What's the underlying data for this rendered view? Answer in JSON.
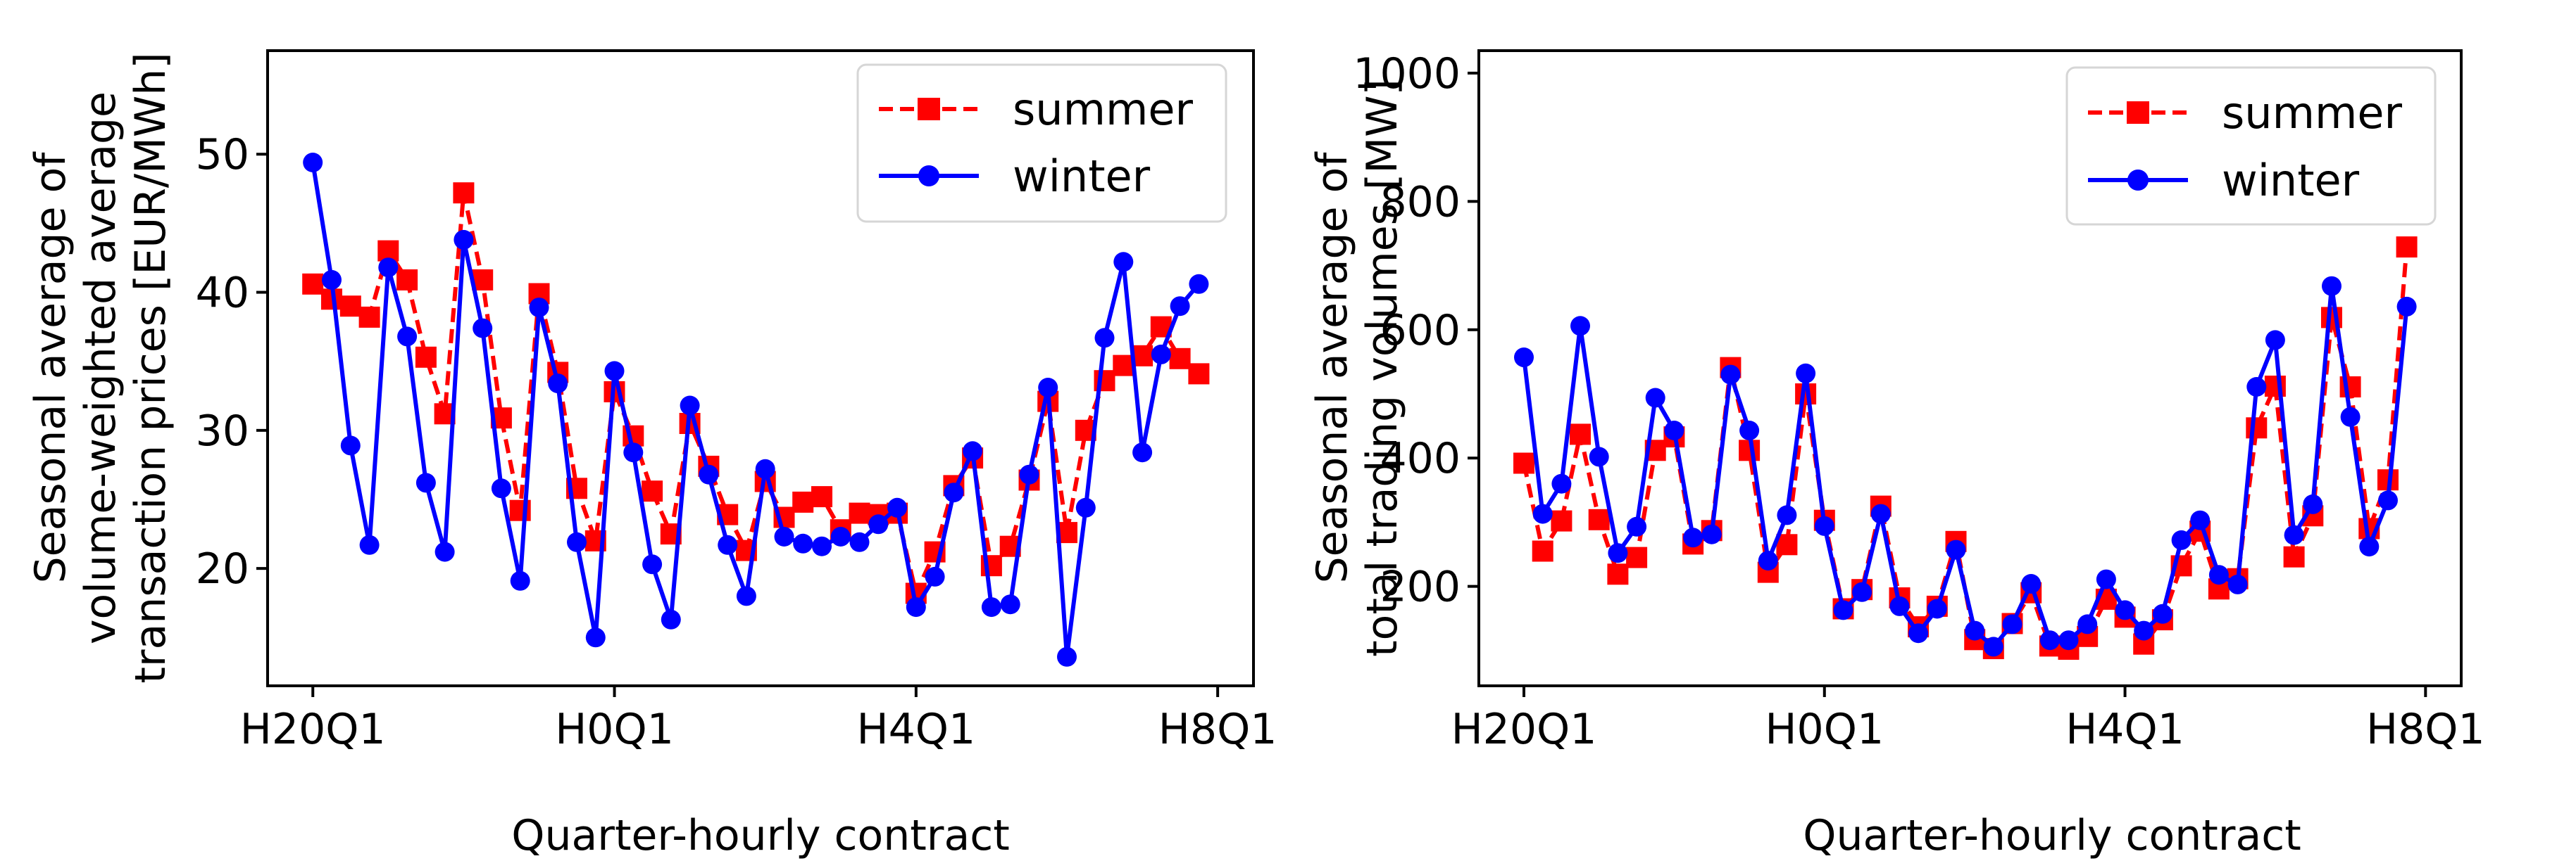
{
  "chart_data": [
    {
      "type": "line",
      "title": "",
      "xlabel": "Quarter-hourly contract",
      "ylabel_lines": [
        "Seasonal average of",
        "volume-weighted average",
        "transaction prices [EUR/MWh]"
      ],
      "xticks": [
        {
          "index": 0,
          "label": "H20Q1"
        },
        {
          "index": 16,
          "label": "H0Q1"
        },
        {
          "index": 32,
          "label": "H4Q1"
        },
        {
          "index": 48,
          "label": "H8Q1"
        }
      ],
      "yticks": [
        20,
        30,
        40,
        50
      ],
      "ylim": [
        11.5,
        57.5
      ],
      "xlim": [
        -2.4,
        49.9
      ],
      "legend_position": "top-right",
      "series": [
        {
          "name": "summer",
          "color": "#ff0000",
          "linestyle": "dashed",
          "marker": "square",
          "values": [
            40.6,
            39.5,
            39.0,
            38.2,
            43.0,
            40.9,
            35.3,
            31.2,
            47.2,
            40.9,
            30.9,
            24.2,
            39.9,
            34.2,
            25.8,
            22.0,
            32.8,
            29.6,
            25.6,
            22.5,
            30.5,
            27.4,
            23.9,
            21.3,
            26.3,
            23.7,
            24.8,
            25.2,
            22.8,
            24.0,
            23.9,
            24.0,
            18.2,
            21.2,
            26.0,
            28.0,
            20.2,
            21.6,
            26.4,
            32.1,
            22.6,
            30.0,
            33.6,
            34.7,
            35.4,
            37.5,
            35.2,
            34.1
          ]
        },
        {
          "name": "winter",
          "color": "#0000ff",
          "linestyle": "solid",
          "marker": "circle",
          "values": [
            49.4,
            40.9,
            28.9,
            21.7,
            41.8,
            36.8,
            26.2,
            21.2,
            43.8,
            37.4,
            25.8,
            19.1,
            38.9,
            33.4,
            21.9,
            15.0,
            34.3,
            28.4,
            20.3,
            16.3,
            31.8,
            26.8,
            21.7,
            18.0,
            27.2,
            22.3,
            21.8,
            21.6,
            22.3,
            21.9,
            23.2,
            24.4,
            17.2,
            19.4,
            25.5,
            28.5,
            17.2,
            17.4,
            26.8,
            33.1,
            13.6,
            24.4,
            36.7,
            42.2,
            28.4,
            35.5,
            39.0,
            40.6
          ]
        }
      ]
    },
    {
      "type": "line",
      "title": "",
      "xlabel": "Quarter-hourly contract",
      "ylabel_lines": [
        "Seasonal average of",
        "total trading volumes [MW]"
      ],
      "xticks": [
        {
          "index": 0,
          "label": "H20Q1"
        },
        {
          "index": 16,
          "label": "H0Q1"
        },
        {
          "index": 32,
          "label": "H4Q1"
        },
        {
          "index": 48,
          "label": "H8Q1"
        }
      ],
      "yticks": [
        200,
        400,
        600,
        800,
        1000
      ],
      "ylim": [
        45,
        1035
      ],
      "xlim": [
        -2.4,
        49.9
      ],
      "legend_position": "top-right",
      "series": [
        {
          "name": "summer",
          "color": "#ff0000",
          "linestyle": "dashed",
          "marker": "square",
          "values": [
            392,
            255,
            302,
            437,
            304,
            219,
            245,
            412,
            433,
            266,
            287,
            541,
            412,
            222,
            265,
            500,
            303,
            165,
            195,
            325,
            182,
            137,
            169,
            270,
            117,
            103,
            142,
            190,
            107,
            102,
            122,
            180,
            152,
            110,
            148,
            232,
            286,
            196,
            212,
            447,
            512,
            246,
            310,
            619,
            511,
            290,
            366,
            729
          ]
        },
        {
          "name": "winter",
          "color": "#0000ff",
          "linestyle": "solid",
          "marker": "circle",
          "values": [
            557,
            313,
            360,
            606,
            402,
            252,
            293,
            494,
            443,
            276,
            281,
            530,
            443,
            240,
            311,
            532,
            294,
            163,
            191,
            313,
            169,
            127,
            165,
            257,
            131,
            106,
            141,
            204,
            116,
            116,
            141,
            211,
            163,
            131,
            157,
            272,
            303,
            218,
            203,
            511,
            584,
            280,
            328,
            668,
            464,
            262,
            334,
            636
          ]
        }
      ]
    }
  ]
}
